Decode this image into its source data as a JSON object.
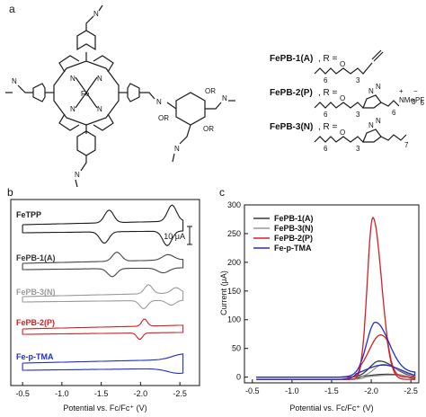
{
  "panels": {
    "a": {
      "label": "a",
      "metal": "Fe",
      "ring_atom": "N",
      "substituent_label": "OR",
      "compounds": [
        {
          "name": "FePB-1(A)",
          "r_text": ", R ="
        },
        {
          "name": "FePB-2(P)",
          "r_text": ", R ="
        },
        {
          "name": "FePB-3(N)",
          "r_text": ", R ="
        }
      ],
      "chain_labels": {
        "n6": "6",
        "n3": "3",
        "n7": "7",
        "o": "O",
        "n": "N",
        "nme3": "NMe",
        "me3_sub": "3",
        "pf6": "PF",
        "pf6_sub": "6",
        "plus": "+",
        "minus": "−"
      }
    },
    "b": {
      "label": "b",
      "scale_bar": "10 μA",
      "chart_data": {
        "type": "line",
        "xlabel": "Potential vs. Fc/Fc⁺ (V)",
        "ylabel": "",
        "xlim": [
          -0.6,
          2.7
        ],
        "x_reversed": true,
        "x_ticks": [
          -0.5,
          -1.0,
          -1.5,
          -2.0,
          -2.5
        ],
        "x_tick_labels": [
          "-0.5",
          "-1.0",
          "-1.5",
          "-2.0",
          "-2.5"
        ],
        "series": [
          {
            "name": "FeTPP",
            "color": "#1a1a1a"
          },
          {
            "name": "FePB-1(A)",
            "color": "#444444"
          },
          {
            "name": "FePB-3(N)",
            "color": "#9a9a9a"
          },
          {
            "name": "FePB-2(P)",
            "color": "#d42020"
          },
          {
            "name": "Fe-p-TMA",
            "color": "#1f2fc8"
          }
        ]
      }
    },
    "c": {
      "label": "c",
      "chart_data": {
        "type": "line",
        "xlabel": "Potential vs. Fc/Fc⁺ (V)",
        "ylabel": "Current (μA)",
        "xlim": [
          -0.4,
          -2.6
        ],
        "ylim": [
          -10,
          300
        ],
        "x_ticks": [
          -0.5,
          -1.0,
          -1.5,
          -2.0,
          -2.5
        ],
        "x_tick_labels": [
          "-0.5",
          "-1.0",
          "-1.5",
          "-2.0",
          "-2.5"
        ],
        "y_ticks": [
          0,
          50,
          100,
          150,
          200,
          250,
          300
        ],
        "y_tick_labels": [
          "0",
          "50",
          "100",
          "150",
          "200",
          "250",
          "300"
        ],
        "legend_position": "top-right",
        "series": [
          {
            "name": "FePB-1(A)",
            "color": "#3a3a3a",
            "peak": 28
          },
          {
            "name": "FePB-3(N)",
            "color": "#9a9a9a",
            "peak": 22
          },
          {
            "name": "FePB-2(P)",
            "color": "#d42020",
            "peak": 278
          },
          {
            "name": "Fe-p-TMA",
            "color": "#1f2fc8",
            "peak": 92
          }
        ]
      }
    }
  }
}
